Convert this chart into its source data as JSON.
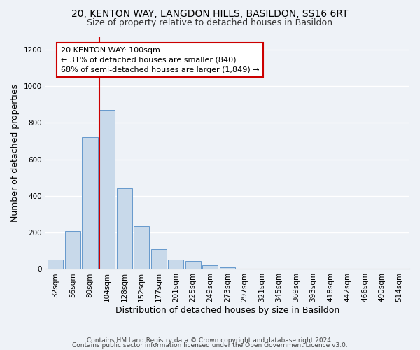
{
  "title1": "20, KENTON WAY, LANGDON HILLS, BASILDON, SS16 6RT",
  "title2": "Size of property relative to detached houses in Basildon",
  "xlabel": "Distribution of detached houses by size in Basildon",
  "ylabel": "Number of detached properties",
  "categories": [
    "32sqm",
    "56sqm",
    "80sqm",
    "104sqm",
    "128sqm",
    "152sqm",
    "177sqm",
    "201sqm",
    "225sqm",
    "249sqm",
    "273sqm",
    "297sqm",
    "321sqm",
    "345sqm",
    "369sqm",
    "393sqm",
    "418sqm",
    "442sqm",
    "466sqm",
    "490sqm",
    "514sqm"
  ],
  "values": [
    50,
    210,
    720,
    870,
    440,
    235,
    110,
    50,
    45,
    20,
    10,
    0,
    0,
    0,
    0,
    0,
    0,
    0,
    0,
    0,
    0
  ],
  "bar_color": "#c8d9ea",
  "bar_edge_color": "#6699cc",
  "annotation_text": "20 KENTON WAY: 100sqm\n← 31% of detached houses are smaller (840)\n68% of semi-detached houses are larger (1,849) →",
  "annotation_box_color": "white",
  "annotation_box_edge_color": "#cc0000",
  "vline_color": "#cc0000",
  "vline_x_index": 3,
  "ylim": [
    0,
    1270
  ],
  "yticks": [
    0,
    200,
    400,
    600,
    800,
    1000,
    1200
  ],
  "footer1": "Contains HM Land Registry data © Crown copyright and database right 2024.",
  "footer2": "Contains public sector information licensed under the Open Government Licence v3.0.",
  "background_color": "#eef2f7",
  "grid_color": "white",
  "title1_fontsize": 10,
  "title2_fontsize": 9,
  "axis_label_fontsize": 9,
  "tick_fontsize": 7.5,
  "annotation_fontsize": 8,
  "footer_fontsize": 6.5
}
